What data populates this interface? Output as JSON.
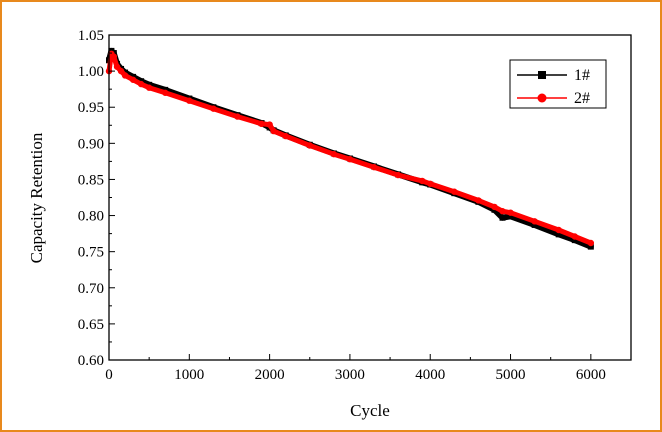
{
  "chart_data": {
    "type": "line",
    "title": "",
    "xlabel": "Cycle",
    "ylabel": "Capacity Retention",
    "xlim": [
      0,
      6500
    ],
    "ylim": [
      0.6,
      1.05
    ],
    "x_ticks": [
      0,
      1000,
      2000,
      3000,
      4000,
      5000,
      6000
    ],
    "x_tick_labels": [
      "0",
      "1000",
      "2000",
      "3000",
      "4000",
      "5000",
      "6000"
    ],
    "y_ticks": [
      0.6,
      0.65,
      0.7,
      0.75,
      0.8,
      0.85,
      0.9,
      0.95,
      1.0,
      1.05
    ],
    "y_tick_labels": [
      "0.60",
      "0.65",
      "0.70",
      "0.75",
      "0.80",
      "0.85",
      "0.90",
      "0.95",
      "1.00",
      "1.05"
    ],
    "grid": false,
    "legend_position": "top-right",
    "series": [
      {
        "name": "1#",
        "color": "#000000",
        "marker": "square",
        "x": [
          0,
          30,
          60,
          100,
          150,
          200,
          300,
          400,
          500,
          700,
          1000,
          1300,
          1600,
          1900,
          2000,
          2050,
          2200,
          2500,
          2800,
          3000,
          3300,
          3600,
          3900,
          4000,
          4300,
          4600,
          4800,
          4900,
          5000,
          5300,
          5600,
          5800,
          6000
        ],
        "y": [
          1.015,
          1.028,
          1.025,
          1.01,
          1.003,
          0.998,
          0.992,
          0.986,
          0.981,
          0.974,
          0.962,
          0.95,
          0.939,
          0.928,
          0.922,
          0.918,
          0.911,
          0.898,
          0.886,
          0.879,
          0.868,
          0.857,
          0.846,
          0.843,
          0.831,
          0.819,
          0.808,
          0.797,
          0.799,
          0.787,
          0.774,
          0.766,
          0.757
        ]
      },
      {
        "name": "2#",
        "color": "#ff0000",
        "marker": "circle",
        "x": [
          0,
          30,
          60,
          100,
          150,
          200,
          300,
          400,
          500,
          700,
          1000,
          1300,
          1600,
          1900,
          2000,
          2050,
          2200,
          2500,
          2800,
          3000,
          3300,
          3600,
          3900,
          4000,
          4300,
          4600,
          4800,
          4900,
          5000,
          5300,
          5600,
          5800,
          6000
        ],
        "y": [
          1.0,
          1.024,
          1.02,
          1.006,
          1.0,
          0.994,
          0.988,
          0.982,
          0.977,
          0.97,
          0.959,
          0.948,
          0.937,
          0.927,
          0.926,
          0.917,
          0.91,
          0.897,
          0.885,
          0.878,
          0.867,
          0.856,
          0.848,
          0.844,
          0.833,
          0.821,
          0.812,
          0.806,
          0.804,
          0.792,
          0.78,
          0.771,
          0.762
        ]
      }
    ]
  }
}
